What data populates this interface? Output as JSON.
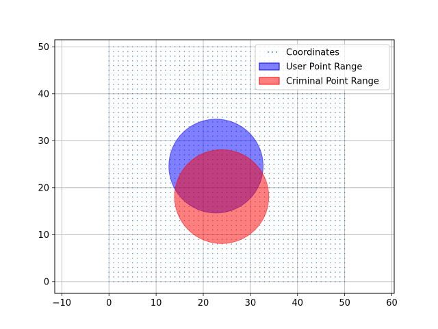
{
  "chart_data": {
    "type": "scatter",
    "title": "",
    "xlabel": "",
    "ylabel": "",
    "xlim": [
      -11.5,
      60.5
    ],
    "ylim": [
      -2.5,
      51.5
    ],
    "xticks": [
      -10,
      0,
      10,
      20,
      30,
      40,
      50,
      60
    ],
    "yticks": [
      0,
      10,
      20,
      30,
      40,
      50
    ],
    "grid": true,
    "legend_position": "top-right",
    "scatter_grid": {
      "x_start": 0,
      "x_end": 50,
      "x_step": 1,
      "y_start": 0,
      "y_end": 50,
      "y_step": 1,
      "color": "#1f77b4"
    },
    "series": [
      {
        "name": "Coordinates",
        "kind": "points",
        "color": "#1f77b4"
      },
      {
        "name": "User Point Range",
        "kind": "circle",
        "center": [
          22.7,
          24.6
        ],
        "radius": 10,
        "color": "#0000ff",
        "alpha": 0.5
      },
      {
        "name": "Criminal Point Range",
        "kind": "circle",
        "center": [
          23.9,
          18.1
        ],
        "radius": 10,
        "color": "#ff0000",
        "alpha": 0.5
      }
    ]
  }
}
